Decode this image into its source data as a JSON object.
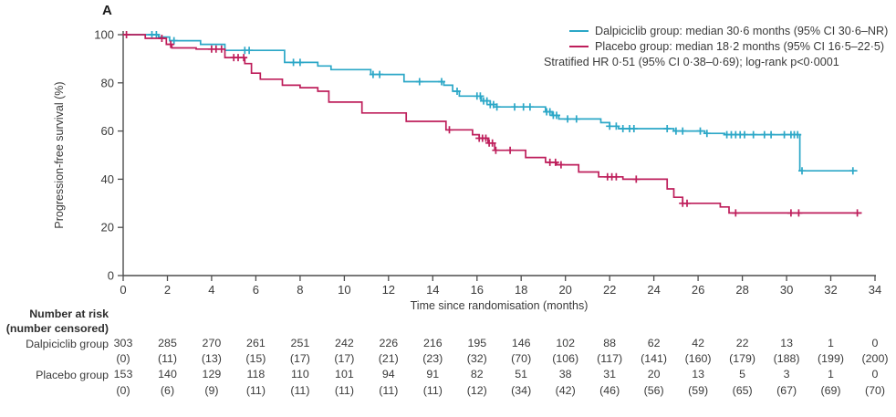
{
  "panel_label": "A",
  "colors": {
    "dalpiciclib": "#2BA7C7",
    "placebo": "#BE1E5B",
    "axis": "#4d4d4d",
    "text": "#3a3a3a"
  },
  "legend": {
    "entries": [
      {
        "label": "Dalpiciclib group: median 30·6 months (95% CI 30·6–NR)",
        "color": "#2BA7C7"
      },
      {
        "label": "Placebo group: median 18·2 months (95% CI 16·5–22·5)",
        "color": "#BE1E5B"
      }
    ],
    "note": "Stratified HR 0·51 (95% CI 0·38–0·69); log-rank p<0·0001"
  },
  "chart_data": {
    "type": "line",
    "subtype": "kaplan-meier-step",
    "title": "",
    "xlabel": "Time since randomisation (months)",
    "ylabel": "Progression-free survival (%)",
    "xlim": [
      0,
      34
    ],
    "ylim": [
      0,
      100
    ],
    "x_ticks": [
      0,
      2,
      4,
      6,
      8,
      10,
      12,
      14,
      16,
      18,
      20,
      22,
      24,
      26,
      28,
      30,
      32,
      34
    ],
    "y_ticks": [
      0,
      20,
      40,
      60,
      80,
      100
    ],
    "grid": false,
    "legend_position": "top-right",
    "series": [
      {
        "name": "Dalpiciclib group",
        "color": "#2BA7C7",
        "points": [
          [
            0,
            100
          ],
          [
            1.6,
            99
          ],
          [
            2.1,
            97.5
          ],
          [
            3.5,
            96
          ],
          [
            4.6,
            93.5
          ],
          [
            7.3,
            88.5
          ],
          [
            8.8,
            87
          ],
          [
            9.4,
            85.5
          ],
          [
            11.2,
            83.5
          ],
          [
            12.7,
            80.5
          ],
          [
            14.5,
            79
          ],
          [
            14.9,
            76.5
          ],
          [
            15.2,
            74.5
          ],
          [
            16.2,
            72.5
          ],
          [
            16.6,
            71
          ],
          [
            16.9,
            70
          ],
          [
            19.1,
            68
          ],
          [
            19.4,
            66.5
          ],
          [
            19.7,
            65
          ],
          [
            21.6,
            63.5
          ],
          [
            22.0,
            62
          ],
          [
            22.4,
            61
          ],
          [
            24.9,
            60
          ],
          [
            26.3,
            59
          ],
          [
            27.2,
            58.5
          ],
          [
            30.6,
            43.5
          ],
          [
            33.2,
            43.5
          ]
        ],
        "censor_months": [
          1.3,
          1.5,
          2.3,
          5.5,
          5.7,
          7.7,
          8.0,
          11.3,
          11.6,
          13.4,
          14.4,
          15.1,
          16.0,
          16.15,
          16.3,
          16.45,
          16.6,
          16.75,
          16.9,
          17.7,
          18.1,
          18.4,
          19.15,
          19.3,
          19.45,
          19.6,
          20.1,
          20.5,
          22.0,
          22.3,
          22.6,
          22.9,
          23.1,
          24.6,
          25.0,
          25.3,
          26.1,
          26.4,
          27.3,
          27.5,
          27.7,
          27.9,
          28.1,
          28.5,
          29.0,
          29.3,
          29.9,
          30.2,
          30.35,
          30.5,
          30.7,
          33.0
        ]
      },
      {
        "name": "Placebo group",
        "color": "#BE1E5B",
        "points": [
          [
            0,
            100
          ],
          [
            1.0,
            98.5
          ],
          [
            1.95,
            96
          ],
          [
            2.2,
            94.5
          ],
          [
            3.3,
            94
          ],
          [
            4.6,
            90.5
          ],
          [
            5.5,
            88
          ],
          [
            5.8,
            84
          ],
          [
            6.2,
            81.5
          ],
          [
            7.2,
            79
          ],
          [
            8.0,
            78
          ],
          [
            8.8,
            76.5
          ],
          [
            9.3,
            72
          ],
          [
            10.8,
            67.5
          ],
          [
            12.8,
            64
          ],
          [
            14.6,
            60.5
          ],
          [
            15.8,
            58.5
          ],
          [
            16.1,
            57
          ],
          [
            16.5,
            55
          ],
          [
            16.8,
            52
          ],
          [
            18.2,
            49
          ],
          [
            19.1,
            47
          ],
          [
            19.6,
            46
          ],
          [
            20.6,
            43
          ],
          [
            21.5,
            41
          ],
          [
            22.6,
            40
          ],
          [
            24.6,
            36
          ],
          [
            24.9,
            32.5
          ],
          [
            25.3,
            30
          ],
          [
            27.0,
            28.5
          ],
          [
            27.4,
            26
          ],
          [
            33.4,
            26
          ]
        ],
        "censor_months": [
          0.15,
          1.75,
          2.15,
          4.0,
          4.2,
          4.45,
          5.0,
          5.2,
          5.45,
          14.75,
          16.1,
          16.25,
          16.4,
          16.55,
          16.7,
          16.85,
          17.5,
          19.3,
          19.55,
          19.8,
          21.9,
          22.1,
          22.3,
          23.2,
          25.3,
          25.5,
          27.7,
          30.2,
          30.55,
          33.2
        ]
      }
    ]
  },
  "risk_table": {
    "header_line1": "Number at risk",
    "header_line2": "(number censored)",
    "time_points": [
      0,
      2,
      4,
      6,
      8,
      10,
      12,
      14,
      16,
      18,
      20,
      22,
      24,
      26,
      28,
      30,
      32,
      34
    ],
    "rows": [
      {
        "label": "Dalpiciclib group",
        "at_risk": [
          303,
          285,
          270,
          261,
          251,
          242,
          226,
          216,
          195,
          146,
          102,
          88,
          62,
          42,
          22,
          13,
          1,
          0
        ],
        "censored": [
          0,
          11,
          13,
          15,
          17,
          17,
          21,
          23,
          32,
          70,
          106,
          117,
          141,
          160,
          179,
          188,
          199,
          200
        ]
      },
      {
        "label": "Placebo group",
        "at_risk": [
          153,
          140,
          129,
          118,
          110,
          101,
          94,
          91,
          82,
          51,
          38,
          31,
          20,
          13,
          5,
          3,
          1,
          0
        ],
        "censored": [
          0,
          6,
          9,
          11,
          11,
          11,
          11,
          11,
          12,
          34,
          42,
          46,
          56,
          59,
          65,
          67,
          69,
          70
        ]
      }
    ]
  }
}
